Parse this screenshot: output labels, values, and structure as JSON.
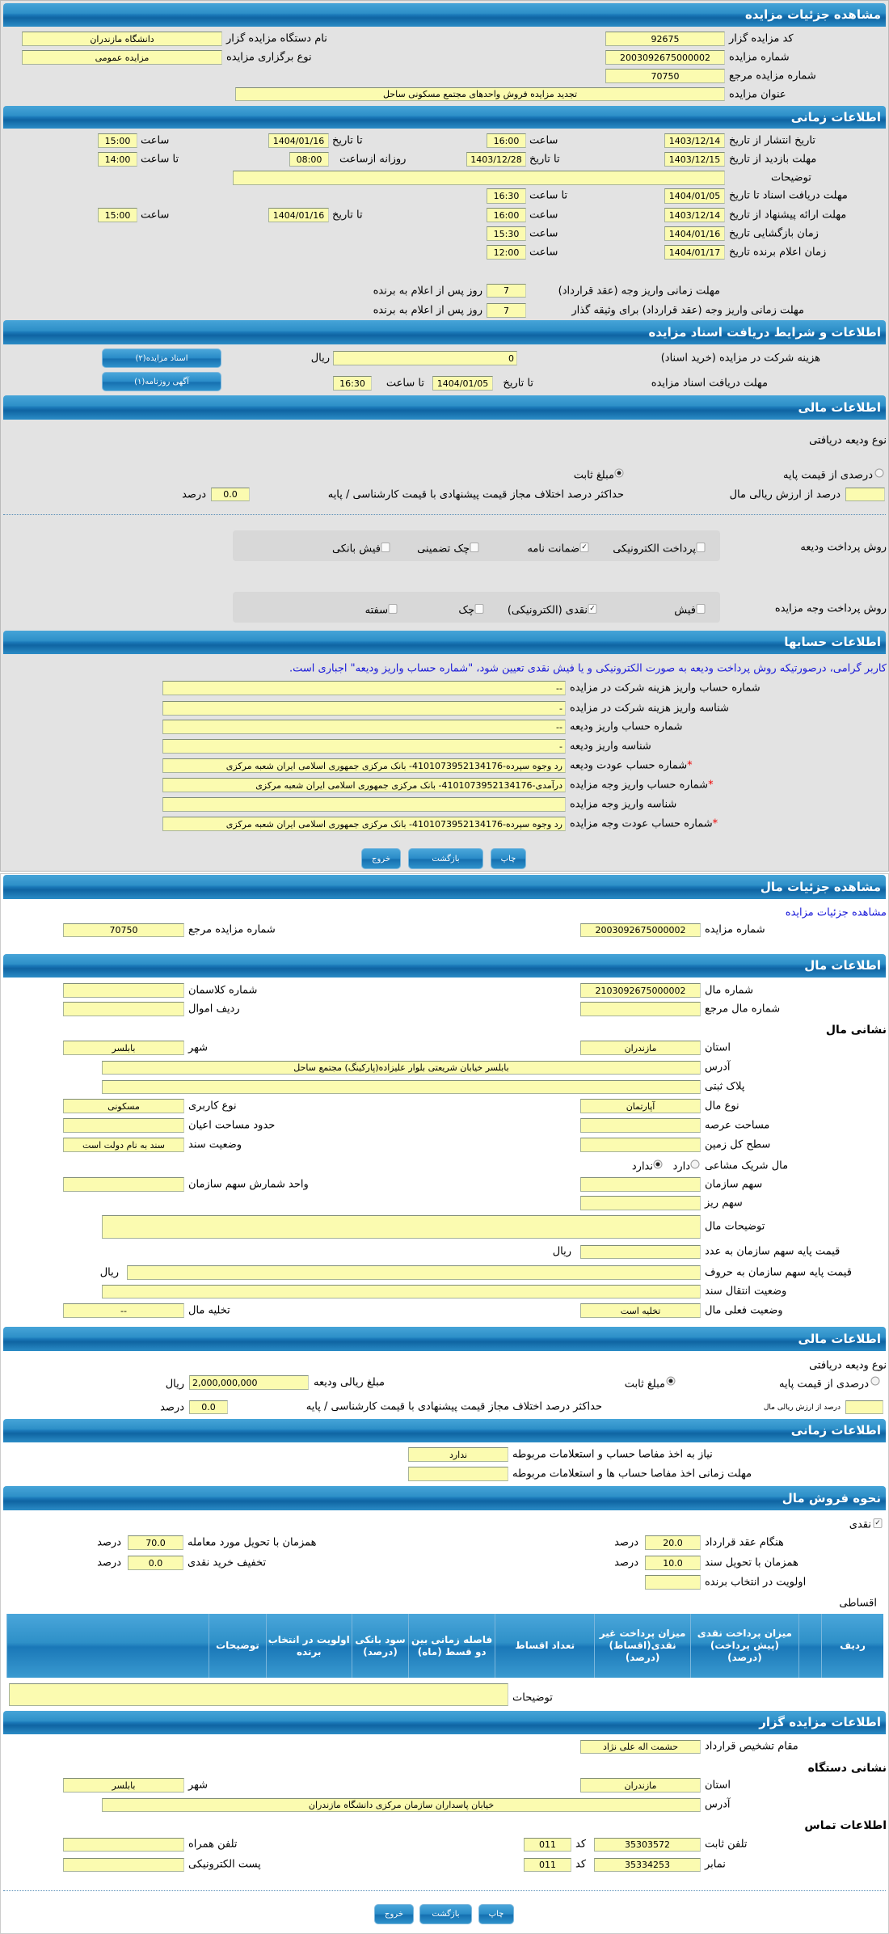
{
  "colors": {
    "header_blue": "#1a78b8",
    "field_yellow": "#fbfbb0",
    "panel_gray": "#e3e3e3",
    "notice_blue": "#1a1ad8",
    "required_red": "#e00000"
  },
  "auction": {
    "title": "مشاهده جزئیات مزایده",
    "auctioneer_code_label": "کد مزایده گزار",
    "auctioneer_code": "92675",
    "auctioneer_name_label": "نام دستگاه مزایده گزار",
    "auctioneer_name": "دانشگاه مازندران",
    "auction_number_label": "شماره مزایده",
    "auction_number": "2003092675000002",
    "auction_type_label": "نوع برگزاری مزایده",
    "auction_type": "مزایده عمومی",
    "ref_number_label": "شماره مزایده مرجع",
    "ref_number": "70750",
    "subject_label": "عنوان مزایده",
    "subject": "تجدید مزایده فروش واحدهای مجتمع مسکونی ساحل"
  },
  "timing": {
    "title": "اطلاعات زمانی",
    "publish": {
      "label": "تاریخ انتشار  از تاریخ",
      "from": "1403/12/14",
      "from_time_label": "ساعت",
      "from_time": "16:00",
      "to_label": "تا تاریخ",
      "to": "1404/01/16",
      "to_time_label": "ساعت",
      "to_time": "15:00"
    },
    "visit": {
      "label": "مهلت بازدید  از تاریخ",
      "from": "1403/12/15",
      "to_label": "تا تاریخ",
      "to": "1403/12/28",
      "daily_from_label": "روزانه ازساعت",
      "daily_from": "08:00",
      "daily_to_label": "تا ساعت",
      "daily_to": "14:00"
    },
    "notes": {
      "label": "توضیحات",
      "value": ""
    },
    "docs": {
      "label": "مهلت دریافت اسناد  تا تاریخ",
      "to": "1404/01/05",
      "time_label": "تا ساعت",
      "time": "16:30"
    },
    "proposal": {
      "label": "مهلت ارائه پیشنهاد  از تاریخ",
      "from": "1403/12/14",
      "from_time_label": "ساعت",
      "from_time": "16:00",
      "to_label": "تا تاریخ",
      "to": "1404/01/16",
      "to_time_label": "ساعت",
      "to_time": "15:00"
    },
    "opening": {
      "label": "زمان بازگشایی   تاریخ",
      "date": "1404/01/16",
      "time_label": "ساعت",
      "time": "15:30"
    },
    "winner": {
      "label": "زمان اعلام برنده   تاریخ",
      "date": "1404/01/17",
      "time_label": "ساعت",
      "time": "12:00"
    },
    "contract_deadline": {
      "label": "مهلت زمانی واریز وجه (عقد قرارداد)",
      "value": "7",
      "suffix": "روز پس از اعلام به برنده"
    },
    "pledger_deadline": {
      "label": "مهلت زمانی واریز وجه (عقد قرارداد) برای وثیقه گذار",
      "value": "7",
      "suffix": "روز پس از اعلام به برنده"
    }
  },
  "documents": {
    "title": "اطلاعات و شرایط دریافت اسناد مزایده",
    "fee_label": "هزینه شرکت در مزایده (خرید اسناد)",
    "fee": "0",
    "currency": "ریال",
    "docs_button": "اسناد مزایده(۲)",
    "deadline_label": "مهلت دریافت اسناد مزایده",
    "to_date_label": "تا تاریخ",
    "date": "1404/01/05",
    "to_time_label": "تا ساعت",
    "time": "16:30",
    "newspaper_button": "آگهی روزنامه(۱)"
  },
  "finance": {
    "title": "اطلاعات مالی",
    "deposit_type_label": "نوع ودیعه دریافتی",
    "option_percent": "درصدی از قیمت پایه",
    "percent_checked": false,
    "option_fixed": "مبلغ ثابت",
    "fixed_checked": true,
    "percent_of_value": "",
    "percent_of_value_label": "درصد از ارزش ریالی مال",
    "max_diff_label": "حداکثر درصد اختلاف مجاز قیمت پیشنهادی با قیمت کارشناسی / پایه",
    "max_diff": "0.0",
    "percent_unit": "درصد",
    "deposit_payment_label": "روش پرداخت ودیعه",
    "deposit_methods": [
      {
        "label": "پرداخت الکترونیکی",
        "checked": false
      },
      {
        "label": "ضمانت نامه",
        "checked": true
      },
      {
        "label": "چک تضمینی",
        "checked": false
      },
      {
        "label": "فیش بانکی",
        "checked": false
      }
    ],
    "payment_label": "روش پرداخت وجه مزایده",
    "payment_methods": [
      {
        "label": "فیش",
        "checked": false
      },
      {
        "label": "نقدی (الکترونیکی)",
        "checked": true
      },
      {
        "label": "چک",
        "checked": false
      },
      {
        "label": "سفته",
        "checked": false
      }
    ]
  },
  "accounts": {
    "title": "اطلاعات حسابها",
    "notice": "کاربر گرامی، درصورتیکه روش پرداخت ودیعه به صورت الکترونیکی و یا فیش نقدی تعیین شود، \"شماره حساب واریز ودیعه\" اجباری است.",
    "rows": [
      {
        "label": "شماره حساب واریز هزینه شرکت در مزایده",
        "value": "--",
        "required": false
      },
      {
        "label": "شناسه واریز هزینه شرکت در مزایده",
        "value": "-",
        "required": false
      },
      {
        "label": "شماره حساب واریز ودیعه",
        "value": "--",
        "required": false
      },
      {
        "label": "شناسه واریز ودیعه",
        "value": "-",
        "required": false
      },
      {
        "label": "شماره حساب عودت ودیعه",
        "value": "رد وجوه سپرده-4101073952134176- بانک مرکزی جمهوری اسلامی ایران شعبه مرکزی",
        "required": true
      },
      {
        "label": "شماره حساب واریز وجه مزایده",
        "value": "درآمدی-4101073952134176- بانک مرکزی جمهوری اسلامی ایران شعبه مرکزی",
        "required": true
      },
      {
        "label": "شناسه واریز وجه مزایده",
        "value": "",
        "required": false
      },
      {
        "label": "شماره حساب عودت وجه مزایده",
        "value": "رد وجوه سپرده-4101073952134176- بانک مرکزی جمهوری اسلامی ایران شعبه مرکزی",
        "required": true
      }
    ]
  },
  "buttons": {
    "print": "چاپ",
    "back": "بازگشت",
    "exit": "خروج"
  },
  "item": {
    "title": "مشاهده جزئیات مال",
    "auction_link": "مشاهده جزئیات مزایده",
    "auction_number_label": "شماره مزایده",
    "auction_number": "2003092675000002",
    "ref_number_label": "شماره مزایده مرجع",
    "ref_number": "70750",
    "info_title": "اطلاعات مال",
    "item_number_label": "شماره مال",
    "item_number": "2103092675000002",
    "classman_label": "شماره کلاسمان",
    "classman": "",
    "item_ref_label": "شماره مال مرجع",
    "item_ref": "",
    "asset_row_label": "ردیف اموال",
    "asset_row": "",
    "address_heading": "نشانی مال",
    "province_label": "استان",
    "province": "مازندران",
    "city_label": "شهر",
    "city": "بابلسر",
    "address_label": "آدرس",
    "address": "بابلسر خیابان شریعتی بلوار علیزاده(پارکینگ) مجتمع ساحل",
    "plate_label": "پلاک ثبتی",
    "plate": "",
    "type_label": "نوع مال",
    "type": "آپارتمان",
    "usage_label": "نوع کاربری",
    "usage": "مسکونی",
    "land_area_label": "مساحت عرصه",
    "land_area": "",
    "building_area_label": "حدود مساحت اعیان",
    "building_area": "",
    "total_land_label": "سطح کل زمین",
    "total_land": "",
    "deed_status_label": "وضعیت سند",
    "deed_status": "سند به نام دولت است",
    "shared_label": "مال شریک مشاعی",
    "shared_yes": "دارد",
    "shared_yes_checked": false,
    "shared_no": "ندارد",
    "shared_no_checked": true,
    "org_share_label": "سهم سازمان",
    "org_share": "",
    "share_unit_label": "واحد شمارش سهم سازمان",
    "share_unit": "",
    "sub_share_label": "سهم ریز",
    "sub_share": "",
    "notes_label": "توضیحات مال",
    "notes": "",
    "base_price_digits_label": "قیمت پایه سهم سازمان به عدد",
    "base_price_digits": "",
    "base_price_words_label": "قیمت پایه سهم سازمان به حروف",
    "base_price_words": "",
    "currency": "ریال",
    "transfer_status_label": "وضعیت انتقال سند",
    "transfer_status": "",
    "current_status_label": "وضعیت فعلی مال",
    "current_status": "تخلیه است",
    "evacuation_label": "تخلیه مال",
    "evacuation": "--"
  },
  "item_finance": {
    "title": "اطلاعات مالی",
    "deposit_type_label": "نوع ودیعه دریافتی",
    "option_percent": "درصدی از قیمت پایه",
    "percent_checked": false,
    "option_fixed": "مبلغ ثابت",
    "fixed_checked": true,
    "deposit_amount_label": "مبلغ ریالی ودیعه",
    "deposit_amount": "2,000,000,000",
    "currency": "ریال",
    "percent_of_value": "",
    "percent_of_value_label": "درصد از ارزش ریالی مال",
    "max_diff_label": "حداکثر درصد اختلاف مجاز قیمت پیشنهادی با قیمت کارشناسی / پایه",
    "max_diff": "0.0",
    "percent_unit": "درصد"
  },
  "item_timing": {
    "title": "اطلاعات زمانی",
    "clearance_needed_label": "نیاز به اخذ مفاصا حساب و استعلامات مربوطه",
    "clearance_needed": "ندارد",
    "clearance_deadline_label": "مهلت زمانی اخذ مفاصا حساب ها و استعلامات مربوطه",
    "clearance_deadline": ""
  },
  "sale": {
    "title": "نحوه فروش مال",
    "cash_label": "نقدی",
    "cash_checked": true,
    "on_contract_label": "هنگام عقد قرارداد",
    "on_contract": "20.0",
    "on_delivery_label": "همزمان با تحویل مورد معامله",
    "on_delivery": "70.0",
    "on_deed_label": "همزمان با تحویل سند",
    "on_deed": "10.0",
    "cash_discount_label": "تخفیف خرید نقدی",
    "cash_discount": "0.0",
    "winner_priority_label": "اولویت در انتخاب برنده",
    "winner_priority": "",
    "percent_unit": "درصد",
    "installments_label": "اقساطی",
    "table_columns": [
      "ردیف",
      "",
      "میزان پرداخت نقدی (پیش پرداخت) (درصد)",
      "میزان پرداخت غیر نقدی(اقساط) (درصد)",
      "تعداد اقساط",
      "فاصله زمانی بین دو قسط (ماه)",
      "سود بانکی (درصد)",
      "اولویت در انتخاب برنده",
      "توضیحات",
      ""
    ],
    "notes_label": "توضیحات",
    "notes": ""
  },
  "auctioneer": {
    "title": "اطلاعات مزایده گزار",
    "authority_label": "مقام تشخیص قرارداد",
    "authority": "حشمت اله علی نژاد",
    "address_heading": "نشانی دستگاه",
    "province_label": "استان",
    "province": "مازندران",
    "city_label": "شهر",
    "city": "بابلسر",
    "address_label": "آدرس",
    "address": "خیابان پاسداران سازمان مرکزی دانشگاه مازندران",
    "contact_heading": "اطلاعات تماس",
    "phone_label": "تلفن ثابت",
    "phone": "35303572",
    "code_label": "کد",
    "phone_code": "011",
    "mobile_label": "تلفن همراه",
    "mobile": "",
    "fax_label": "نمابر",
    "fax": "35334253",
    "fax_code": "011",
    "email_label": "پست الکترونیکی",
    "email": ""
  }
}
